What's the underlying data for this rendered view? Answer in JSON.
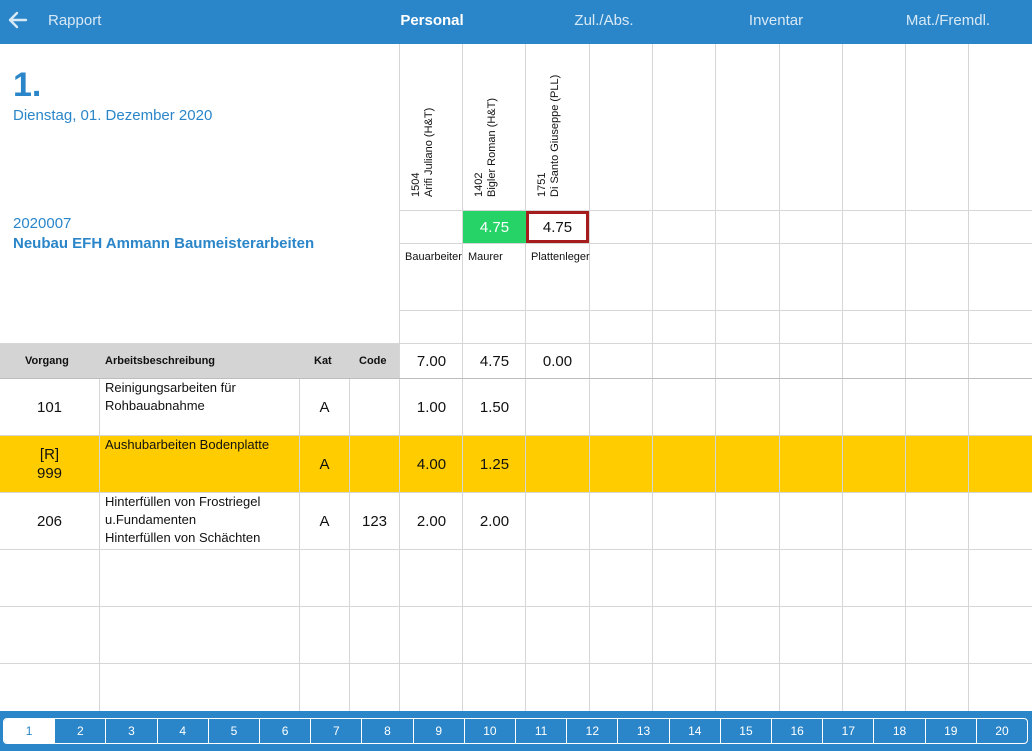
{
  "topbar": {
    "back_label": "Rapport",
    "tabs": [
      {
        "label": "Personal"
      },
      {
        "label": "Zul./Abs."
      },
      {
        "label": "Inventar"
      },
      {
        "label": "Mat./Fremdl."
      }
    ]
  },
  "header": {
    "day": "1.",
    "date": "Dienstag, 01. Dezember 2020",
    "project_number": "2020007",
    "project_name": "Neubau EFH Ammann Baumeisterarbeiten"
  },
  "employees": [
    {
      "line1": "1504",
      "line2": "Arifi Juliano (H&T)",
      "hours": "",
      "role": "Bauarbeiter",
      "total": "7.00"
    },
    {
      "line1": "1402",
      "line2": "Bigler Roman (H&T)",
      "hours": "4.75",
      "role": "Maurer",
      "total": "4.75"
    },
    {
      "line1": "1751",
      "line2": "Di Santo Giuseppe (PLL)",
      "hours": "4.75",
      "role": "Plattenleger",
      "total": "0.00"
    }
  ],
  "table": {
    "headers": {
      "vorgang": "Vorgang",
      "beschreibung": "Arbeitsbeschreibung",
      "kat": "Kat",
      "code": "Code"
    },
    "rows": [
      {
        "vorgang": "101",
        "vorgang2": "",
        "desc1": "Reinigungsarbeiten für",
        "desc2": "Rohbauabnahme",
        "desc3": "",
        "kat": "A",
        "code": "",
        "h1": "1.00",
        "h2": "1.50"
      },
      {
        "vorgang": "[R]",
        "vorgang2": "999",
        "desc1": "Aushubarbeiten Bodenplatte",
        "desc2": "",
        "desc3": "",
        "kat": "A",
        "code": "",
        "h1": "4.00",
        "h2": "1.25"
      },
      {
        "vorgang": "206",
        "vorgang2": "",
        "desc1": "Hinterfüllen von Frostriegel",
        "desc2": "u.Fundamenten",
        "desc3": "Hinterfüllen von Schächten",
        "kat": "A",
        "code": "123",
        "h1": "2.00",
        "h2": "2.00"
      }
    ]
  },
  "pager": {
    "pages": [
      "1",
      "2",
      "3",
      "4",
      "5",
      "6",
      "7",
      "8",
      "9",
      "10",
      "11",
      "12",
      "13",
      "14",
      "15",
      "16",
      "17",
      "18",
      "19",
      "20"
    ],
    "active": "1"
  },
  "colors": {
    "accent": "#2b86c9",
    "highlight_row": "#ffcc00",
    "green": "#25d366",
    "selected_border": "#a51c1c"
  }
}
